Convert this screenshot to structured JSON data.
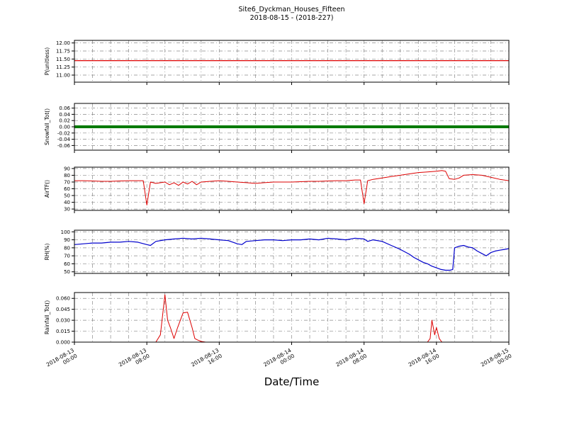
{
  "title": {
    "line1": "Site6_Dyckman_Houses_Fifteen",
    "line2": "2018-08-15 - (2018-227)"
  },
  "xlabel": "Date/Time",
  "x_axis": {
    "range_hours": [
      0,
      48
    ],
    "minor_grid_hours": 2,
    "major_ticks_hours": [
      0,
      8,
      16,
      24,
      32,
      40,
      48
    ],
    "tick_labels": [
      "2018-08-13\n00:00",
      "2018-08-13\n08:00",
      "2018-08-13\n16:00",
      "2018-08-14\n00:00",
      "2018-08-14\n08:00",
      "2018-08-14\n16:00",
      "2018-08-15\n00:00"
    ]
  },
  "chart_data": [
    {
      "type": "line",
      "ylabel": "P(unitless)",
      "ylim": [
        10.78,
        12.08
      ],
      "yticks": [
        11.0,
        11.25,
        11.5,
        11.75,
        12.0
      ],
      "ytick_labels": [
        "11.00",
        "11.25",
        "11.50",
        "11.75",
        "12.00"
      ],
      "grid": true,
      "series": [
        {
          "name": "P",
          "color": "#dd0000",
          "linewidth": 1.3,
          "points": [
            [
              0,
              11.45
            ],
            [
              48,
              11.45
            ]
          ]
        }
      ]
    },
    {
      "type": "line",
      "ylabel": "Snowfall_Tot()",
      "ylim": [
        -0.075,
        0.075
      ],
      "yticks": [
        -0.06,
        -0.04,
        -0.02,
        0.0,
        0.02,
        0.04,
        0.06
      ],
      "ytick_labels": [
        "-0.06",
        "-0.04",
        "-0.02",
        "0.00",
        "0.02",
        "0.04",
        "0.06"
      ],
      "grid": true,
      "series": [
        {
          "name": "Snowfall_Tot",
          "color": "#007a00",
          "linewidth": 4,
          "points": [
            [
              0,
              0.0
            ],
            [
              48,
              0.0
            ]
          ]
        }
      ]
    },
    {
      "type": "line",
      "ylabel": "AirTF()",
      "ylim": [
        28,
        92
      ],
      "yticks": [
        30,
        40,
        50,
        60,
        70,
        80,
        90
      ],
      "ytick_labels": [
        "30",
        "40",
        "50",
        "60",
        "70",
        "80",
        "90"
      ],
      "grid": true,
      "series": [
        {
          "name": "AirTF",
          "color": "#dd0000",
          "linewidth": 1,
          "points": [
            [
              0,
              72
            ],
            [
              1,
              72
            ],
            [
              2,
              71.5
            ],
            [
              3,
              71
            ],
            [
              4,
              71
            ],
            [
              5,
              71.5
            ],
            [
              6,
              72
            ],
            [
              7,
              72
            ],
            [
              7.6,
              72
            ],
            [
              8,
              36
            ],
            [
              8.4,
              70
            ],
            [
              9,
              68
            ],
            [
              10,
              70
            ],
            [
              10.5,
              66
            ],
            [
              11,
              69
            ],
            [
              11.5,
              65
            ],
            [
              12,
              70
            ],
            [
              12.5,
              67
            ],
            [
              13,
              71
            ],
            [
              13.5,
              66
            ],
            [
              14,
              70
            ],
            [
              15,
              71
            ],
            [
              16,
              72
            ],
            [
              17,
              71
            ],
            [
              18,
              70
            ],
            [
              19,
              69
            ],
            [
              20,
              68
            ],
            [
              21,
              69
            ],
            [
              22,
              70
            ],
            [
              23,
              70
            ],
            [
              24,
              70
            ],
            [
              25,
              70.5
            ],
            [
              26,
              71
            ],
            [
              27,
              71
            ],
            [
              28,
              71.5
            ],
            [
              29,
              72
            ],
            [
              30,
              72
            ],
            [
              31,
              73
            ],
            [
              31.6,
              73
            ],
            [
              32,
              38
            ],
            [
              32.4,
              72
            ],
            [
              33,
              74
            ],
            [
              34,
              76
            ],
            [
              35,
              78
            ],
            [
              36,
              80
            ],
            [
              37,
              82
            ],
            [
              38,
              84
            ],
            [
              39,
              85
            ],
            [
              40,
              86
            ],
            [
              40.6,
              87
            ],
            [
              41,
              86
            ],
            [
              41.4,
              75
            ],
            [
              42,
              74
            ],
            [
              42.5,
              76
            ],
            [
              43,
              80
            ],
            [
              44,
              81
            ],
            [
              45,
              80
            ],
            [
              46,
              77
            ],
            [
              47,
              74
            ],
            [
              48,
              72
            ]
          ]
        }
      ]
    },
    {
      "type": "line",
      "ylabel": "RH(%)",
      "ylim": [
        48,
        102
      ],
      "yticks": [
        50,
        60,
        70,
        80,
        90,
        100
      ],
      "ytick_labels": [
        "50",
        "60",
        "70",
        "80",
        "90",
        "100"
      ],
      "grid": true,
      "series": [
        {
          "name": "RH",
          "color": "#0000cc",
          "linewidth": 1.2,
          "points": [
            [
              0,
              84
            ],
            [
              1,
              85
            ],
            [
              2,
              86
            ],
            [
              3,
              86
            ],
            [
              4,
              87
            ],
            [
              5,
              87
            ],
            [
              6,
              88
            ],
            [
              7,
              87
            ],
            [
              8,
              84
            ],
            [
              8.4,
              83
            ],
            [
              9,
              88
            ],
            [
              10,
              90
            ],
            [
              11,
              91
            ],
            [
              12,
              92
            ],
            [
              13,
              91
            ],
            [
              14,
              92
            ],
            [
              15,
              91
            ],
            [
              16,
              90
            ],
            [
              17,
              89
            ],
            [
              18,
              85
            ],
            [
              18.5,
              84
            ],
            [
              19,
              88
            ],
            [
              20,
              89
            ],
            [
              21,
              90
            ],
            [
              22,
              90
            ],
            [
              23,
              89
            ],
            [
              24,
              90
            ],
            [
              25,
              90
            ],
            [
              26,
              91
            ],
            [
              27,
              90
            ],
            [
              28,
              92
            ],
            [
              29,
              91
            ],
            [
              30,
              90
            ],
            [
              31,
              92
            ],
            [
              32,
              91
            ],
            [
              32.4,
              88
            ],
            [
              33,
              90
            ],
            [
              34,
              88
            ],
            [
              35,
              83
            ],
            [
              36,
              78
            ],
            [
              36.5,
              75
            ],
            [
              37,
              72
            ],
            [
              37.5,
              68
            ],
            [
              38,
              65
            ],
            [
              38.5,
              62
            ],
            [
              39,
              60
            ],
            [
              39.5,
              57
            ],
            [
              40,
              55
            ],
            [
              40.5,
              53
            ],
            [
              41,
              52
            ],
            [
              41.5,
              52
            ],
            [
              41.8,
              53
            ],
            [
              42,
              80
            ],
            [
              42.5,
              82
            ],
            [
              43,
              83
            ],
            [
              43.5,
              81
            ],
            [
              44,
              80
            ],
            [
              44.5,
              76
            ],
            [
              45,
              73
            ],
            [
              45.5,
              70
            ],
            [
              46,
              74
            ],
            [
              46.5,
              76
            ],
            [
              47,
              77
            ],
            [
              47.5,
              78
            ],
            [
              48,
              79
            ]
          ]
        }
      ]
    },
    {
      "type": "line",
      "ylabel": "Rainfall_Tot()",
      "ylim": [
        0,
        0.068
      ],
      "yticks": [
        0.0,
        0.015,
        0.03,
        0.045,
        0.06
      ],
      "ytick_labels": [
        "0.000",
        "0.015",
        "0.030",
        "0.045",
        "0.060"
      ],
      "grid": true,
      "series": [
        {
          "name": "Rainfall_Tot",
          "color": "#dd0000",
          "linewidth": 1,
          "points": [
            [
              0,
              0
            ],
            [
              9,
              0
            ],
            [
              9.5,
              0.01
            ],
            [
              10,
              0.065
            ],
            [
              10.3,
              0.03
            ],
            [
              10.6,
              0.02
            ],
            [
              11,
              0.005
            ],
            [
              11.4,
              0.02
            ],
            [
              12,
              0.04
            ],
            [
              12.5,
              0.041
            ],
            [
              13,
              0.02
            ],
            [
              13.3,
              0.005
            ],
            [
              13.6,
              0.003
            ],
            [
              14,
              0.001
            ],
            [
              14.5,
              0
            ],
            [
              39,
              0
            ],
            [
              39.3,
              0.005
            ],
            [
              39.5,
              0.03
            ],
            [
              39.8,
              0.01
            ],
            [
              40,
              0.02
            ],
            [
              40.3,
              0.005
            ],
            [
              40.6,
              0
            ],
            [
              48,
              0
            ]
          ]
        }
      ]
    }
  ]
}
